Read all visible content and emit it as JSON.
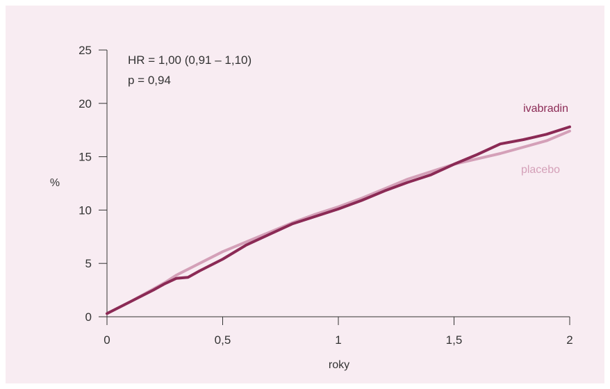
{
  "chart_data": {
    "type": "line",
    "title": "",
    "xlabel": "roky",
    "ylabel": "%",
    "xlim": [
      0,
      2
    ],
    "ylim": [
      0,
      25
    ],
    "x_ticks": [
      {
        "value": 0,
        "label": "0"
      },
      {
        "value": 0.5,
        "label": "0,5"
      },
      {
        "value": 1,
        "label": "1"
      },
      {
        "value": 1.5,
        "label": "1,5"
      },
      {
        "value": 2,
        "label": "2"
      }
    ],
    "y_ticks": [
      {
        "value": 0,
        "label": "0"
      },
      {
        "value": 5,
        "label": "5"
      },
      {
        "value": 10,
        "label": "10"
      },
      {
        "value": 15,
        "label": "15"
      },
      {
        "value": 20,
        "label": "20"
      },
      {
        "value": 25,
        "label": "25"
      }
    ],
    "annotations": [
      "HR = 1,00 (0,91 – 1,10)",
      "p = 0,94"
    ],
    "grid": false,
    "series": [
      {
        "name": "ivabradin",
        "color": "#8b2a55",
        "x": [
          0,
          0.1,
          0.2,
          0.25,
          0.3,
          0.35,
          0.4,
          0.5,
          0.6,
          0.7,
          0.8,
          0.9,
          1.0,
          1.1,
          1.2,
          1.3,
          1.4,
          1.5,
          1.6,
          1.7,
          1.8,
          1.9,
          2.0
        ],
        "values": [
          0.3,
          1.4,
          2.5,
          3.1,
          3.6,
          3.7,
          4.3,
          5.4,
          6.7,
          7.7,
          8.7,
          9.4,
          10.1,
          10.9,
          11.8,
          12.6,
          13.3,
          14.3,
          15.2,
          16.2,
          16.6,
          17.1,
          17.8
        ]
      },
      {
        "name": "placebo",
        "color": "#d4a0b8",
        "x": [
          0,
          0.1,
          0.2,
          0.25,
          0.3,
          0.4,
          0.5,
          0.6,
          0.7,
          0.8,
          0.9,
          1.0,
          1.1,
          1.2,
          1.3,
          1.4,
          1.5,
          1.6,
          1.7,
          1.8,
          1.9,
          2.0
        ],
        "values": [
          0.3,
          1.4,
          2.6,
          3.2,
          3.9,
          5.0,
          6.1,
          7.0,
          7.9,
          8.8,
          9.6,
          10.3,
          11.1,
          12.0,
          12.9,
          13.6,
          14.3,
          14.8,
          15.3,
          15.9,
          16.5,
          17.4
        ]
      }
    ]
  }
}
